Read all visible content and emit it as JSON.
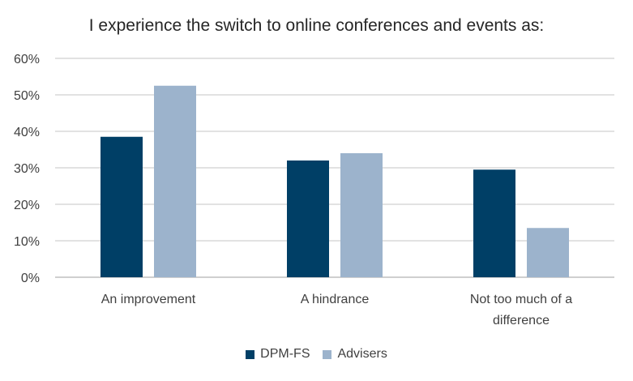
{
  "chart_data": {
    "type": "bar",
    "title": "I experience the switch to online conferences and events as:",
    "categories": [
      "An improvement",
      "A hindrance",
      "Not too much of a difference"
    ],
    "category_lines": [
      [
        "An improvement"
      ],
      [
        "A hindrance"
      ],
      [
        "Not too much of a",
        "difference"
      ]
    ],
    "series": [
      {
        "name": "DPM-FS",
        "values": [
          38.5,
          32,
          29.5
        ],
        "color": "#003f66"
      },
      {
        "name": "Advisers",
        "values": [
          52.5,
          34,
          13.5
        ],
        "color": "#9cb3cc"
      }
    ],
    "ylim": [
      0,
      60
    ],
    "yticks": [
      0,
      10,
      20,
      30,
      40,
      50,
      60
    ],
    "ytick_labels": [
      "0%",
      "10%",
      "20%",
      "30%",
      "40%",
      "50%",
      "60%"
    ],
    "grid": true,
    "legend_position": "bottom"
  }
}
